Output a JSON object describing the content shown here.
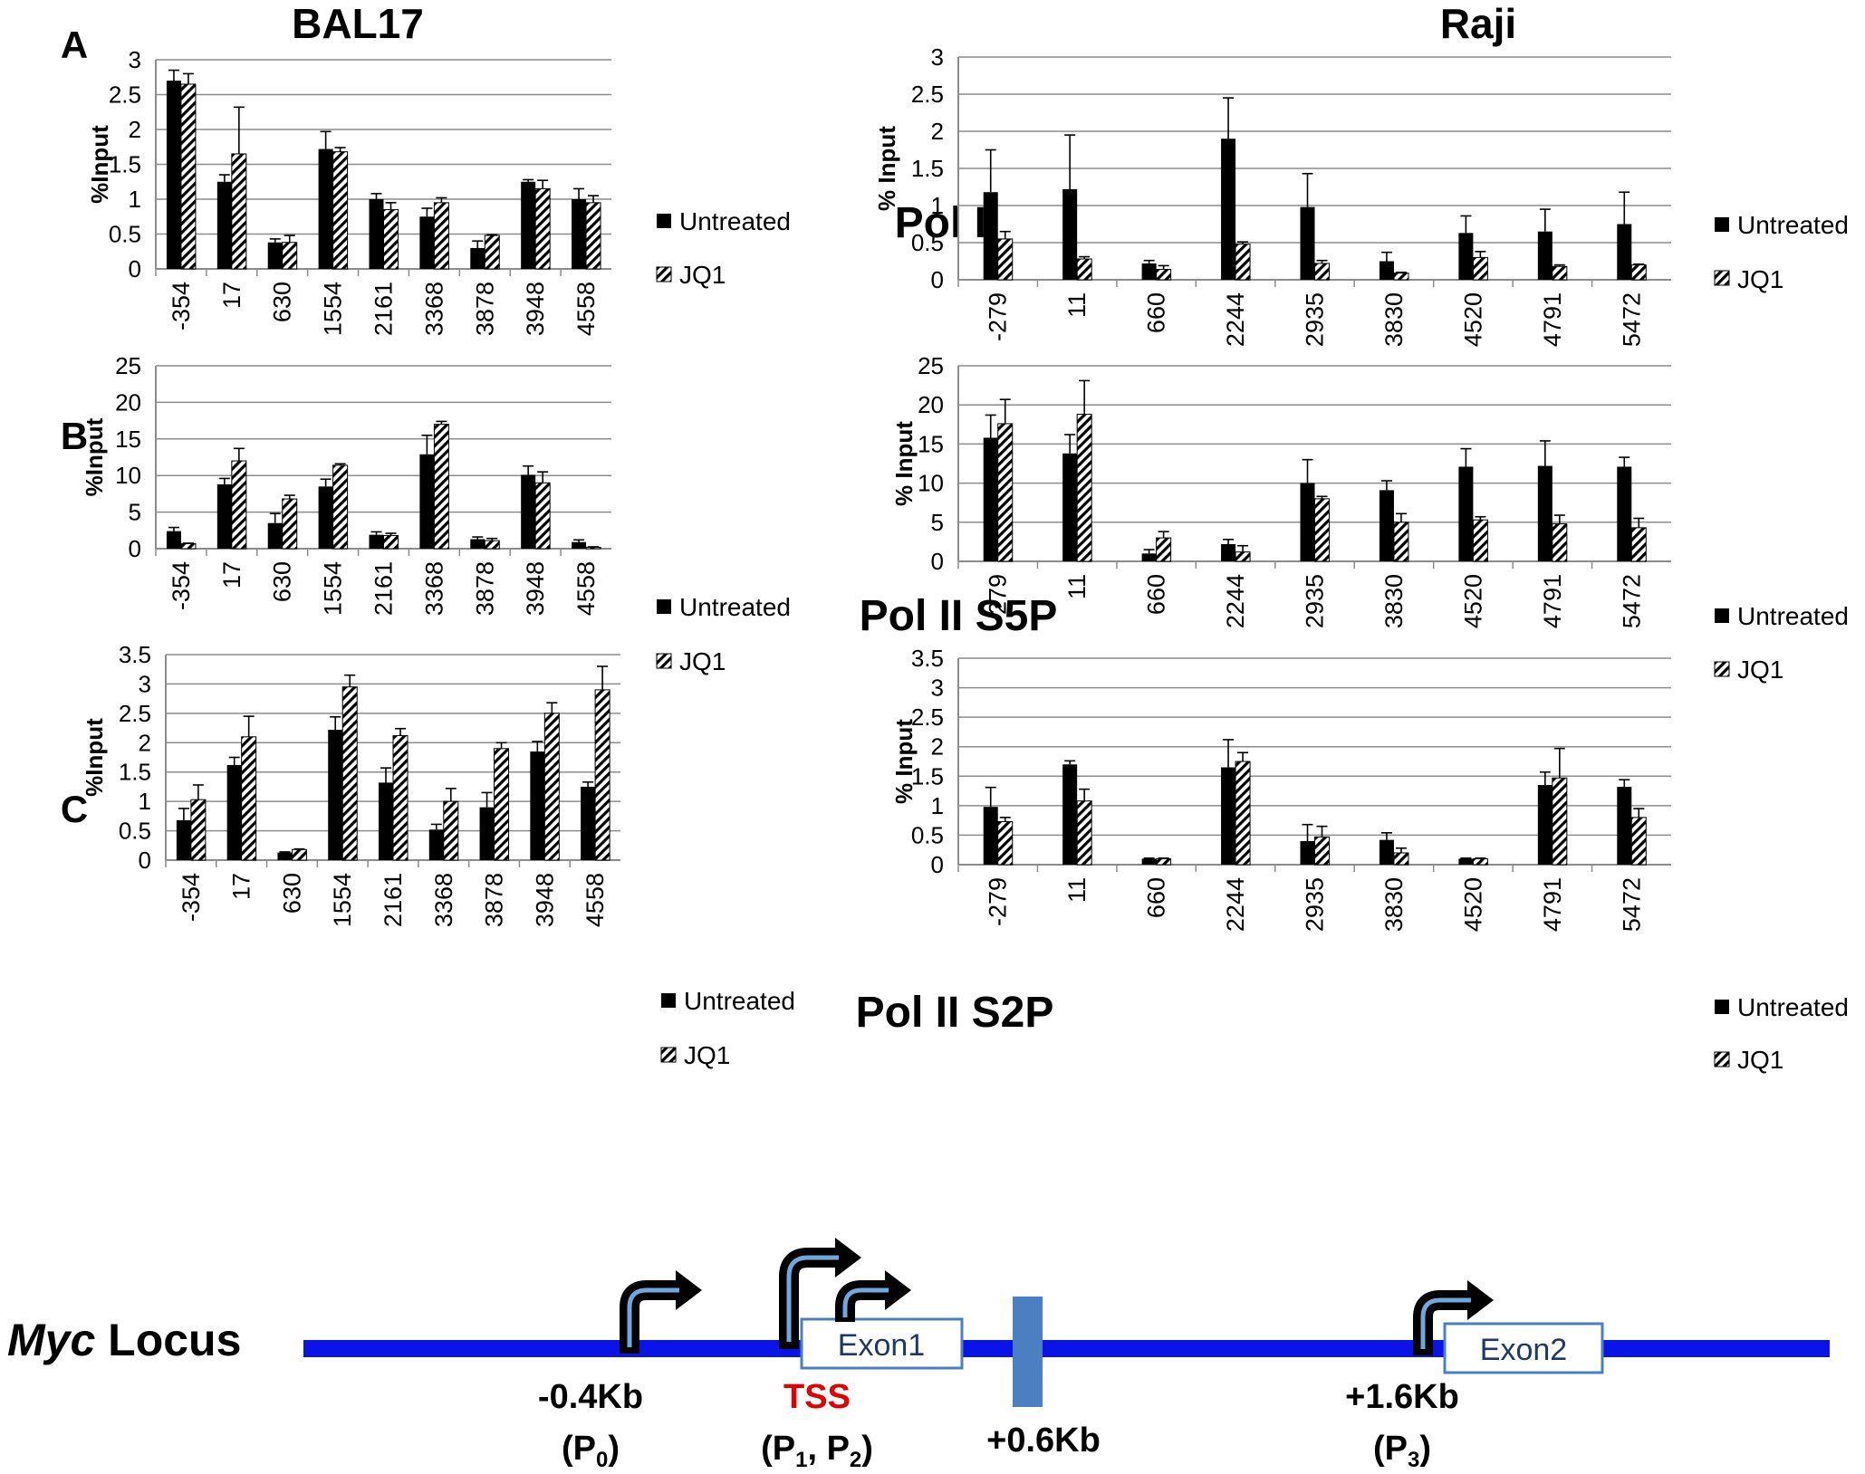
{
  "columns": [
    "BAL17",
    "Raji"
  ],
  "panels": [
    {
      "letter": "A",
      "title": "Pol II"
    },
    {
      "letter": "B",
      "title": "Pol II S5P"
    },
    {
      "letter": "C",
      "title": "Pol II S2P"
    }
  ],
  "legend": {
    "untreated": "Untreated",
    "jq1": "JQ1"
  },
  "chart_data": [
    {
      "type": "bar",
      "cell": "BAL17",
      "ylabel": "%Input",
      "ylim": [
        0,
        3
      ],
      "yticks": [
        0,
        0.5,
        1,
        1.5,
        2,
        2.5,
        3
      ],
      "categories": [
        "-354",
        "17",
        "630",
        "1554",
        "2161",
        "3368",
        "3878",
        "3948",
        "4558"
      ],
      "series": [
        {
          "name": "Untreated",
          "values": [
            2.7,
            1.25,
            0.38,
            1.72,
            1.0,
            0.75,
            0.3,
            1.25,
            1.0
          ],
          "errors": [
            0.15,
            0.1,
            0.05,
            0.25,
            0.08,
            0.12,
            0.1,
            0.03,
            0.15
          ]
        },
        {
          "name": "JQ1",
          "values": [
            2.65,
            1.65,
            0.38,
            1.68,
            0.85,
            0.95,
            0.48,
            1.15,
            0.95
          ],
          "errors": [
            0.15,
            0.67,
            0.1,
            0.06,
            0.1,
            0.07,
            0.01,
            0.12,
            0.1
          ]
        }
      ]
    },
    {
      "type": "bar",
      "cell": "Raji",
      "ylabel": "% Input",
      "ylim": [
        0,
        3
      ],
      "yticks": [
        0,
        0.5,
        1,
        1.5,
        2,
        2.5,
        3
      ],
      "categories": [
        "-279",
        "11",
        "660",
        "2244",
        "2935",
        "3830",
        "4520",
        "4791",
        "5472"
      ],
      "series": [
        {
          "name": "Untreated",
          "values": [
            1.18,
            1.22,
            0.22,
            1.9,
            0.98,
            0.25,
            0.63,
            0.65,
            0.75
          ],
          "errors": [
            0.57,
            0.73,
            0.04,
            0.55,
            0.45,
            0.12,
            0.23,
            0.3,
            0.43
          ]
        },
        {
          "name": "JQ1",
          "values": [
            0.55,
            0.28,
            0.14,
            0.48,
            0.22,
            0.09,
            0.3,
            0.18,
            0.2
          ],
          "errors": [
            0.1,
            0.03,
            0.05,
            0.03,
            0.04,
            0.01,
            0.08,
            0.02,
            0.01
          ]
        }
      ]
    },
    {
      "type": "bar",
      "cell": "BAL17",
      "ylabel": "%Input",
      "ylim": [
        0,
        25
      ],
      "yticks": [
        0,
        5,
        10,
        15,
        20,
        25
      ],
      "categories": [
        "-354",
        "17",
        "630",
        "1554",
        "2161",
        "3368",
        "3878",
        "3948",
        "4558"
      ],
      "series": [
        {
          "name": "Untreated",
          "values": [
            2.4,
            8.8,
            3.5,
            8.5,
            1.9,
            12.9,
            1.3,
            10.1,
            0.9
          ],
          "errors": [
            0.5,
            0.8,
            1.3,
            1.0,
            0.4,
            2.6,
            0.3,
            1.2,
            0.3
          ]
        },
        {
          "name": "JQ1",
          "values": [
            0.7,
            12.0,
            6.8,
            11.4,
            1.8,
            17.0,
            1.1,
            9.0,
            0.2
          ],
          "errors": [
            0.05,
            1.7,
            0.5,
            0.2,
            0.3,
            0.4,
            0.3,
            1.5,
            0.05
          ]
        }
      ]
    },
    {
      "type": "bar",
      "cell": "Raji",
      "ylabel": "% Input",
      "ylim": [
        0,
        25
      ],
      "yticks": [
        0,
        5,
        10,
        15,
        20,
        25
      ],
      "categories": [
        "-279",
        "11",
        "660",
        "2244",
        "2935",
        "3830",
        "4520",
        "4791",
        "5472"
      ],
      "series": [
        {
          "name": "Untreated",
          "values": [
            15.8,
            13.8,
            1.0,
            2.2,
            10.0,
            9.1,
            12.1,
            12.2,
            12.1
          ],
          "errors": [
            2.9,
            2.4,
            0.5,
            0.6,
            3.0,
            1.2,
            2.3,
            3.2,
            1.2
          ]
        },
        {
          "name": "JQ1",
          "values": [
            17.6,
            18.8,
            3.0,
            1.2,
            8.0,
            5.0,
            5.3,
            4.8,
            4.3
          ],
          "errors": [
            3.1,
            4.3,
            0.8,
            0.8,
            0.3,
            1.1,
            0.4,
            1.1,
            1.2
          ]
        }
      ]
    },
    {
      "type": "bar",
      "cell": "BAL17",
      "ylabel": "%Input",
      "ylim": [
        0,
        3.5
      ],
      "yticks": [
        0,
        0.5,
        1,
        1.5,
        2,
        2.5,
        3,
        3.5
      ],
      "categories": [
        "-354",
        "17",
        "630",
        "1554",
        "2161",
        "3368",
        "3878",
        "3948",
        "4558"
      ],
      "series": [
        {
          "name": "Untreated",
          "values": [
            0.68,
            1.62,
            0.13,
            2.22,
            1.32,
            0.52,
            0.9,
            1.85,
            1.25
          ],
          "errors": [
            0.2,
            0.13,
            0.01,
            0.22,
            0.25,
            0.09,
            0.25,
            0.17,
            0.08
          ]
        },
        {
          "name": "JQ1",
          "values": [
            1.03,
            2.1,
            0.18,
            2.95,
            2.12,
            1.0,
            1.9,
            2.5,
            2.9
          ],
          "errors": [
            0.25,
            0.35,
            0.01,
            0.2,
            0.12,
            0.22,
            0.1,
            0.18,
            0.4
          ]
        }
      ]
    },
    {
      "type": "bar",
      "cell": "Raji",
      "ylabel": "% Input",
      "ylim": [
        0,
        3.5
      ],
      "yticks": [
        0,
        0.5,
        1,
        1.5,
        2,
        2.5,
        3,
        3.5
      ],
      "categories": [
        "-279",
        "11",
        "660",
        "2244",
        "2935",
        "3830",
        "4520",
        "4791",
        "5472"
      ],
      "series": [
        {
          "name": "Untreated",
          "values": [
            0.98,
            1.7,
            0.1,
            1.65,
            0.4,
            0.42,
            0.1,
            1.35,
            1.32
          ],
          "errors": [
            0.33,
            0.06,
            0.01,
            0.47,
            0.28,
            0.12,
            0.01,
            0.22,
            0.12
          ]
        },
        {
          "name": "JQ1",
          "values": [
            0.73,
            1.08,
            0.1,
            1.75,
            0.47,
            0.2,
            0.1,
            1.47,
            0.8
          ],
          "errors": [
            0.07,
            0.2,
            0.01,
            0.15,
            0.18,
            0.08,
            0.01,
            0.5,
            0.15
          ]
        }
      ]
    }
  ],
  "locus": {
    "label_italic": "Myc",
    "label_rest": " Locus",
    "exon1": "Exon1",
    "exon2": "Exon2",
    "p0_pos": "-0.4Kb",
    "p0_name": "P",
    "p0_sub": "0",
    "tss": "TSS",
    "p12_p1": "P",
    "p12_s1": "1",
    "p12_p2": "P",
    "p12_s2": "2",
    "enh": "+0.6Kb",
    "p3_pos": "+1.6Kb",
    "p3_name": "P",
    "p3_sub": "3",
    "colors": {
      "line": "#0a14e6",
      "enhancer": "#4a7fc1",
      "exon_border": "#4a7fc1",
      "exon_text": "#1f3864",
      "tss": "#e00000",
      "arrow_inner": "#6fa8dc"
    }
  }
}
